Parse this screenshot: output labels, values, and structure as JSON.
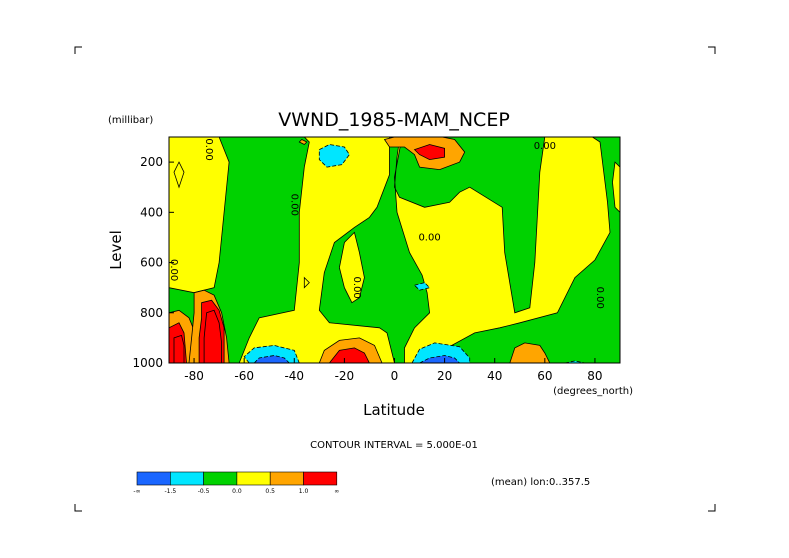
{
  "chart_data": {
    "type": "contour",
    "title": "VWND_1985-MAM_NCEP",
    "xlabel": "Latitude",
    "xunits": "(degrees_north)",
    "ylabel": "Level",
    "yunits": "(millibar)",
    "xlim": [
      -90,
      90
    ],
    "ylim": [
      1000,
      100
    ],
    "xticks": [
      {
        "v": -80,
        "label": "-80"
      },
      {
        "v": -60,
        "label": "-60"
      },
      {
        "v": -40,
        "label": "-40"
      },
      {
        "v": -20,
        "label": "-20"
      },
      {
        "v": 0,
        "label": "0"
      },
      {
        "v": 20,
        "label": "20"
      },
      {
        "v": 40,
        "label": "40"
      },
      {
        "v": 60,
        "label": "60"
      },
      {
        "v": 80,
        "label": "80"
      }
    ],
    "yticks": [
      {
        "v": 200,
        "label": "200"
      },
      {
        "v": 400,
        "label": "400"
      },
      {
        "v": 600,
        "label": "600"
      },
      {
        "v": 800,
        "label": "800"
      },
      {
        "v": 1000,
        "label": "1000"
      }
    ],
    "contour_interval_text": "CONTOUR INTERVAL = 5.000E-01",
    "mean_text": "(mean) lon:0..357.5",
    "colorbar": {
      "colors": [
        "#1a66ff",
        "#00e6ff",
        "#00d200",
        "#ffff00",
        "#ffa500",
        "#ff0000"
      ],
      "labels": [
        "-∞",
        "-1.5",
        "-0.5",
        "0.0",
        "0.5",
        "1.0",
        "∞"
      ]
    },
    "contour_labels": [
      {
        "lat": -74,
        "lev": 150,
        "text": "0.00",
        "rotate": 90
      },
      {
        "lat": -40,
        "lev": 370,
        "text": "0.00",
        "rotate": 90
      },
      {
        "lat": -88,
        "lev": 630,
        "text": "0.00",
        "rotate": 90
      },
      {
        "lat": -15,
        "lev": 700,
        "text": "0.00",
        "rotate": 90
      },
      {
        "lat": 14,
        "lev": 500,
        "text": "0.00",
        "rotate": 0
      },
      {
        "lat": 60,
        "lev": 135,
        "text": "0.00",
        "rotate": 0
      },
      {
        "lat": 82,
        "lev": 740,
        "text": "0.00",
        "rotate": 90
      }
    ],
    "regions": [
      {
        "level": 0,
        "points": [
          [
            -90,
            100
          ],
          [
            -70,
            100
          ],
          [
            -66,
            200
          ],
          [
            -68,
            400
          ],
          [
            -70,
            600
          ],
          [
            -72,
            700
          ],
          [
            -80,
            720
          ],
          [
            -90,
            700
          ]
        ]
      },
      {
        "level": 0,
        "points": [
          [
            -62,
            1000
          ],
          [
            -58,
            900
          ],
          [
            -54,
            820
          ],
          [
            -40,
            790
          ],
          [
            -38,
            600
          ],
          [
            -38,
            400
          ],
          [
            -36,
            220
          ],
          [
            -34,
            120
          ],
          [
            -36,
            100
          ],
          [
            -2,
            100
          ],
          [
            -2,
            250
          ],
          [
            -7,
            380
          ],
          [
            -10,
            420
          ],
          [
            -16,
            460
          ],
          [
            -24,
            520
          ],
          [
            -28,
            640
          ],
          [
            -30,
            790
          ],
          [
            -26,
            840
          ],
          [
            -6,
            860
          ],
          [
            -3,
            880
          ],
          [
            0,
            1000
          ]
        ]
      },
      {
        "level": 0,
        "points": [
          [
            -22,
            620
          ],
          [
            -20,
            520
          ],
          [
            -16,
            480
          ],
          [
            -14,
            560
          ],
          [
            -12,
            660
          ],
          [
            -14,
            740
          ],
          [
            -17,
            760
          ],
          [
            -20,
            700
          ]
        ]
      },
      {
        "level": 0,
        "points": [
          [
            18,
            1000
          ],
          [
            21,
            940
          ],
          [
            32,
            880
          ],
          [
            42,
            860
          ],
          [
            50,
            840
          ],
          [
            65,
            800
          ],
          [
            72,
            660
          ],
          [
            80,
            590
          ],
          [
            86,
            480
          ],
          [
            85,
            360
          ],
          [
            82,
            120
          ],
          [
            79,
            100
          ],
          [
            60,
            100
          ],
          [
            58,
            240
          ],
          [
            56,
            600
          ],
          [
            54,
            780
          ],
          [
            48,
            800
          ],
          [
            44,
            560
          ],
          [
            43,
            380
          ],
          [
            30,
            300
          ],
          [
            26,
            320
          ],
          [
            22,
            360
          ],
          [
            12,
            380
          ],
          [
            2,
            340
          ],
          [
            0,
            300
          ],
          [
            1,
            180
          ],
          [
            2,
            110
          ],
          [
            4,
            100
          ],
          [
            3,
            100
          ],
          [
            0,
            260
          ],
          [
            1,
            400
          ],
          [
            6,
            560
          ],
          [
            11,
            650
          ],
          [
            13,
            720
          ],
          [
            14,
            800
          ],
          [
            8,
            860
          ],
          [
            4,
            940
          ],
          [
            4,
            1000
          ]
        ]
      },
      {
        "level": 0,
        "points": [
          [
            -86,
            200
          ],
          [
            -84,
            240
          ],
          [
            -86,
            300
          ],
          [
            -88,
            240
          ]
        ]
      },
      {
        "level": 0,
        "points": [
          [
            88,
            200
          ],
          [
            90,
            220
          ],
          [
            90,
            400
          ],
          [
            88,
            380
          ],
          [
            87,
            280
          ]
        ]
      },
      {
        "level": 0,
        "points": [
          [
            -36,
            660
          ],
          [
            -34,
            680
          ],
          [
            -36,
            700
          ]
        ]
      },
      {
        "level": -0.5,
        "points": [
          [
            -30,
            150
          ],
          [
            -26,
            130
          ],
          [
            -20,
            140
          ],
          [
            -18,
            170
          ],
          [
            -21,
            210
          ],
          [
            -27,
            220
          ],
          [
            -30,
            190
          ]
        ]
      },
      {
        "level": -0.5,
        "points": [
          [
            -58,
            1000
          ],
          [
            -60,
            975
          ],
          [
            -56,
            940
          ],
          [
            -48,
            930
          ],
          [
            -40,
            950
          ],
          [
            -38,
            1000
          ]
        ]
      },
      {
        "level": -0.5,
        "points": [
          [
            7,
            1000
          ],
          [
            10,
            945
          ],
          [
            16,
            920
          ],
          [
            26,
            935
          ],
          [
            30,
            980
          ],
          [
            30,
            1000
          ]
        ]
      },
      {
        "level": -0.5,
        "points": [
          [
            8,
            690
          ],
          [
            12,
            680
          ],
          [
            14,
            700
          ],
          [
            10,
            710
          ]
        ]
      },
      {
        "level": -0.5,
        "points": [
          [
            68,
            1000
          ],
          [
            72,
            992
          ],
          [
            76,
            1000
          ]
        ]
      },
      {
        "level": -1.5,
        "points": [
          [
            -56,
            1000
          ],
          [
            -54,
            980
          ],
          [
            -48,
            970
          ],
          [
            -44,
            980
          ],
          [
            -42,
            1000
          ]
        ]
      },
      {
        "level": -1.5,
        "points": [
          [
            10,
            1000
          ],
          [
            14,
            980
          ],
          [
            20,
            970
          ],
          [
            24,
            980
          ],
          [
            26,
            1000
          ]
        ]
      },
      {
        "level": 0.5,
        "points": [
          [
            -30,
            1000
          ],
          [
            -28,
            950
          ],
          [
            -22,
            910
          ],
          [
            -14,
            900
          ],
          [
            -8,
            930
          ],
          [
            -5,
            1000
          ]
        ]
      },
      {
        "level": 0.5,
        "points": [
          [
            -90,
            800
          ],
          [
            -86,
            790
          ],
          [
            -82,
            820
          ],
          [
            -80,
            870
          ],
          [
            -78,
            920
          ],
          [
            -80,
            1000
          ],
          [
            -90,
            1000
          ]
        ]
      },
      {
        "level": 0.5,
        "points": [
          [
            -80,
            720
          ],
          [
            -76,
            710
          ],
          [
            -72,
            730
          ],
          [
            -69,
            800
          ],
          [
            -67,
            900
          ],
          [
            -66,
            1000
          ],
          [
            -82,
            1000
          ],
          [
            -81,
            900
          ],
          [
            -80,
            800
          ]
        ]
      },
      {
        "level": 0.5,
        "points": [
          [
            -4,
            110
          ],
          [
            4,
            90
          ],
          [
            14,
            90
          ],
          [
            24,
            110
          ],
          [
            28,
            160
          ],
          [
            26,
            200
          ],
          [
            18,
            230
          ],
          [
            10,
            220
          ],
          [
            8,
            170
          ],
          [
            4,
            140
          ],
          [
            -2,
            140
          ]
        ]
      },
      {
        "level": 0.5,
        "points": [
          [
            -38,
            120
          ],
          [
            -37,
            110
          ],
          [
            -35,
            120
          ],
          [
            -36,
            130
          ]
        ]
      },
      {
        "level": 0.5,
        "points": [
          [
            46,
            1000
          ],
          [
            48,
            940
          ],
          [
            52,
            920
          ],
          [
            58,
            930
          ],
          [
            60,
            960
          ],
          [
            62,
            1000
          ]
        ]
      },
      {
        "level": 1.0,
        "points": [
          [
            -26,
            1000
          ],
          [
            -22,
            950
          ],
          [
            -16,
            940
          ],
          [
            -12,
            960
          ],
          [
            -10,
            1000
          ]
        ]
      },
      {
        "level": 1.0,
        "points": [
          [
            -90,
            860
          ],
          [
            -86,
            840
          ],
          [
            -84,
            880
          ],
          [
            -83,
            1000
          ],
          [
            -90,
            1000
          ]
        ]
      },
      {
        "level": 1.0,
        "points": [
          [
            -77,
            760
          ],
          [
            -73,
            750
          ],
          [
            -70,
            790
          ],
          [
            -68,
            860
          ],
          [
            -68,
            1000
          ],
          [
            -78,
            1000
          ],
          [
            -78,
            900
          ],
          [
            -77,
            820
          ]
        ]
      },
      {
        "level": 1.0,
        "points": [
          [
            8,
            150
          ],
          [
            14,
            130
          ],
          [
            20,
            145
          ],
          [
            20,
            180
          ],
          [
            14,
            190
          ],
          [
            10,
            170
          ]
        ]
      },
      {
        "level": 2.0,
        "points": [
          [
            -88,
            900
          ],
          [
            -85,
            890
          ],
          [
            -84,
            930
          ],
          [
            -84,
            1000
          ],
          [
            -88,
            1000
          ]
        ]
      },
      {
        "level": 2.0,
        "points": [
          [
            -75,
            800
          ],
          [
            -72,
            790
          ],
          [
            -70,
            840
          ],
          [
            -69,
            920
          ],
          [
            -69,
            1000
          ],
          [
            -76,
            1000
          ],
          [
            -76,
            900
          ]
        ]
      }
    ]
  }
}
